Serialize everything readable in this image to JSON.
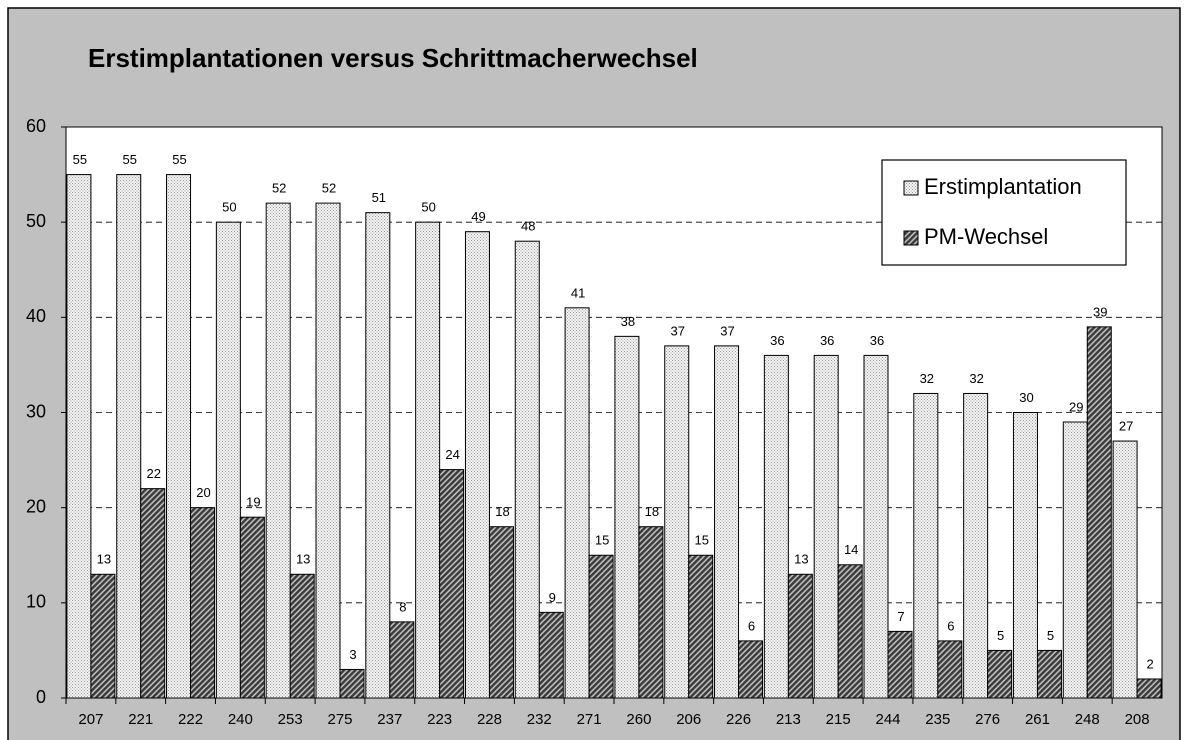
{
  "chart_data": {
    "type": "bar",
    "title": "Erstimplantationen versus Schrittmacherwechsel",
    "categories": [
      "207",
      "221",
      "222",
      "240",
      "253",
      "275",
      "237",
      "223",
      "228",
      "232",
      "271",
      "260",
      "206",
      "226",
      "213",
      "215",
      "244",
      "235",
      "276",
      "261",
      "248",
      "208"
    ],
    "series": [
      {
        "name": "Erstimplantation",
        "color": "#9a9a9a",
        "values": [
          55,
          55,
          55,
          50,
          52,
          52,
          51,
          50,
          49,
          48,
          41,
          38,
          37,
          37,
          36,
          36,
          36,
          32,
          32,
          30,
          29,
          27
        ]
      },
      {
        "name": "PM-Wechsel",
        "color": "#3a3a3a",
        "values": [
          13,
          22,
          20,
          19,
          13,
          3,
          8,
          24,
          18,
          9,
          15,
          18,
          15,
          6,
          13,
          14,
          7,
          6,
          5,
          5,
          39,
          2
        ]
      }
    ],
    "ylim": [
      0,
      60
    ],
    "yticks": [
      0,
      10,
      20,
      30,
      40,
      50,
      60
    ],
    "grid": true,
    "legend": "upper right"
  }
}
